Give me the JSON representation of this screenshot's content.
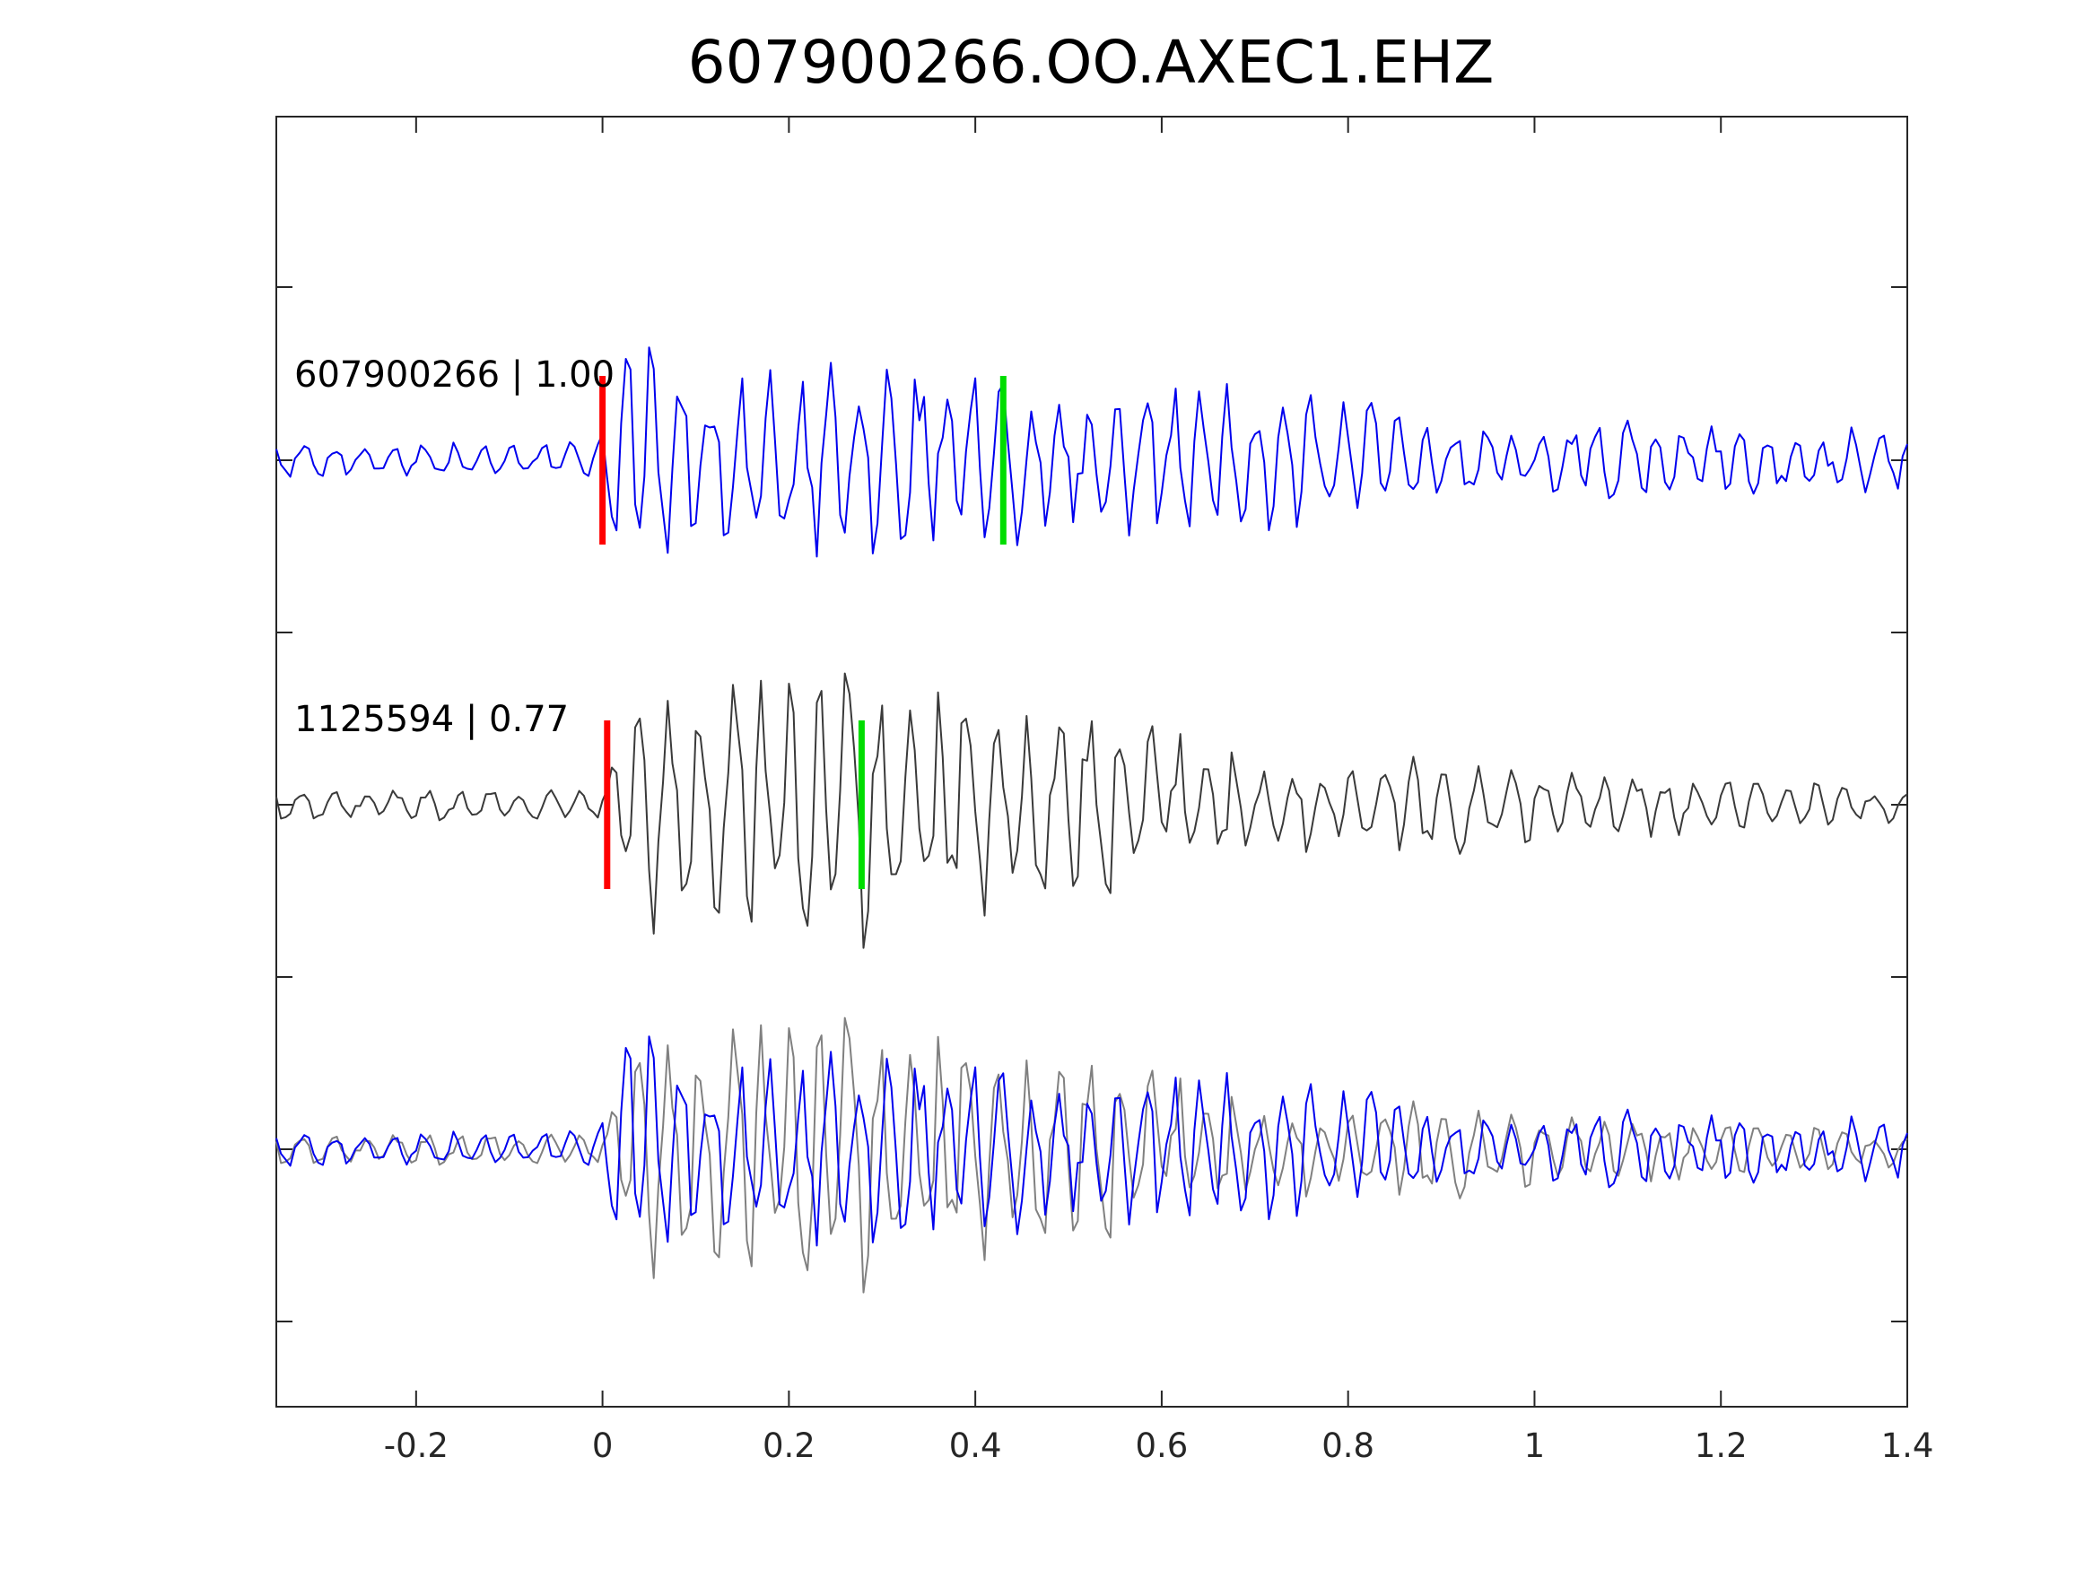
{
  "chart_data": {
    "type": "line",
    "title": "607900266.OO.AXEC1.EHZ",
    "xlabel": "",
    "ylabel": "",
    "xlim": [
      -0.35,
      1.4
    ],
    "x_ticks": [
      "-0.2",
      "0",
      "0.2",
      "0.4",
      "0.6",
      "0.8",
      "1",
      "1.2",
      "1.4"
    ],
    "x_tick_values": [
      -0.2,
      0,
      0.2,
      0.4,
      0.6,
      0.8,
      1,
      1.2,
      1.4
    ],
    "y_tick_labels_shown": false,
    "grid": false,
    "legend": "none",
    "sample_interval_s": 0.005,
    "panels": [
      {
        "label": "607900266 | 1.00",
        "series_color": "#0000ee",
        "traces": [
          "template"
        ],
        "picks": [
          {
            "phase_color": "#ff0000",
            "time_s": 0.0
          },
          {
            "phase_color": "#00dd00",
            "time_s": 0.43
          }
        ]
      },
      {
        "label": "1125594 | 0.77",
        "series_color": "#3a3a3a",
        "traces": [
          "detection"
        ],
        "picks": [
          {
            "phase_color": "#ff0000",
            "time_s": 0.005
          },
          {
            "phase_color": "#00dd00",
            "time_s": 0.278
          }
        ]
      },
      {
        "label": "",
        "traces": [
          "detection_overlay",
          "template"
        ],
        "picks": []
      }
    ],
    "series": [
      {
        "id": "template",
        "color": "#0000ee",
        "envelope": [
          {
            "t": -0.35,
            "amp": 0.1
          },
          {
            "t": -0.01,
            "amp": 0.1
          },
          {
            "t": 0.03,
            "amp": 0.95
          },
          {
            "t": 0.07,
            "amp": 0.55
          },
          {
            "t": 0.13,
            "amp": 0.45
          },
          {
            "t": 0.2,
            "amp": 0.5
          },
          {
            "t": 0.3,
            "amp": 0.55
          },
          {
            "t": 0.4,
            "amp": 0.55
          },
          {
            "t": 0.5,
            "amp": 0.45
          },
          {
            "t": 0.6,
            "amp": 0.45
          },
          {
            "t": 0.7,
            "amp": 0.4
          },
          {
            "t": 0.8,
            "amp": 0.35
          },
          {
            "t": 0.9,
            "amp": 0.25
          },
          {
            "t": 1.0,
            "amp": 0.2
          },
          {
            "t": 1.1,
            "amp": 0.22
          },
          {
            "t": 1.2,
            "amp": 0.18
          },
          {
            "t": 1.4,
            "amp": 0.18
          }
        ],
        "dominant_period_s": 0.032,
        "seed": 7
      },
      {
        "id": "detection",
        "color": "#3a3a3a",
        "envelope": [
          {
            "t": -0.35,
            "amp": 0.1
          },
          {
            "t": 0.0,
            "amp": 0.1
          },
          {
            "t": 0.04,
            "amp": 0.9
          },
          {
            "t": 0.08,
            "amp": 0.55
          },
          {
            "t": 0.18,
            "amp": 0.75
          },
          {
            "t": 0.3,
            "amp": 0.8
          },
          {
            "t": 0.4,
            "amp": 0.7
          },
          {
            "t": 0.48,
            "amp": 0.75
          },
          {
            "t": 0.55,
            "amp": 0.55
          },
          {
            "t": 0.65,
            "amp": 0.35
          },
          {
            "t": 0.8,
            "amp": 0.25
          },
          {
            "t": 0.9,
            "amp": 0.28
          },
          {
            "t": 1.05,
            "amp": 0.2
          },
          {
            "t": 1.2,
            "amp": 0.15
          },
          {
            "t": 1.4,
            "amp": 0.1
          }
        ],
        "dominant_period_s": 0.034,
        "seed": 19
      }
    ]
  }
}
